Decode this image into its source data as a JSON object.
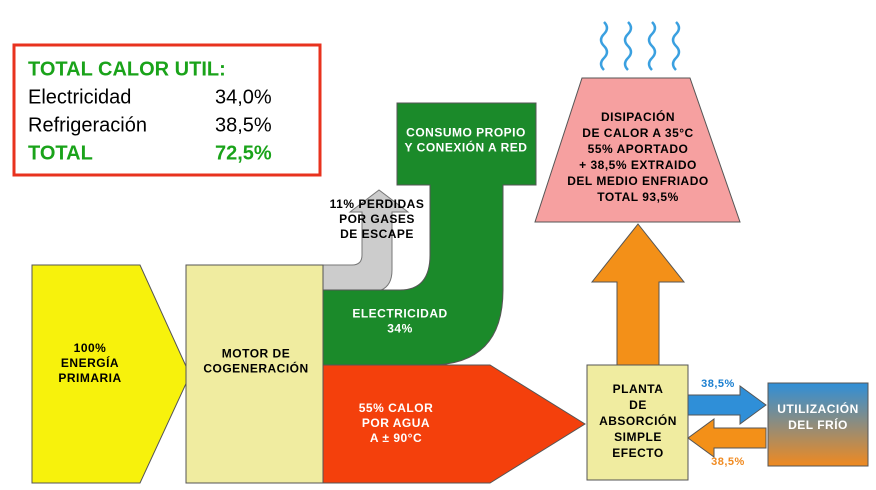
{
  "summary": {
    "title": "TOTAL CALOR UTIL:",
    "rows": [
      [
        "Electricidad",
        "34,0%"
      ],
      [
        "Refrigeración",
        "38,5%"
      ],
      [
        "TOTAL",
        "72,5%"
      ]
    ]
  },
  "nodes": {
    "primary": [
      "100%",
      "ENERGÍA",
      "PRIMARIA"
    ],
    "motor": [
      "MOTOR DE",
      "COGENERACIÓN"
    ],
    "exhaust": [
      "11% PERDIDAS",
      "POR GASES",
      "DE ESCAPE"
    ],
    "grid": [
      "CONSUMO PROPIO",
      "Y CONEXIÓN A RED"
    ],
    "electricity": [
      "ELECTRICIDAD",
      "34%"
    ],
    "heat": [
      "55% CALOR",
      "POR AGUA",
      "A ± 90°C"
    ],
    "plant": [
      "PLANTA",
      "DE",
      "ABSORCIÓN",
      "SIMPLE",
      "EFECTO"
    ],
    "dissipation": [
      "DISIPACIÓN",
      "DE CALOR A 35°C",
      "55% APORTADO",
      "+ 38,5% EXTRAIDO",
      "DEL MEDIO ENFRIADO",
      "TOTAL 93,5%"
    ],
    "cold": [
      "UTILIZACIÓN",
      "DEL FRÍO"
    ],
    "cold_out": "38,5%",
    "cold_return": "38,5%"
  }
}
